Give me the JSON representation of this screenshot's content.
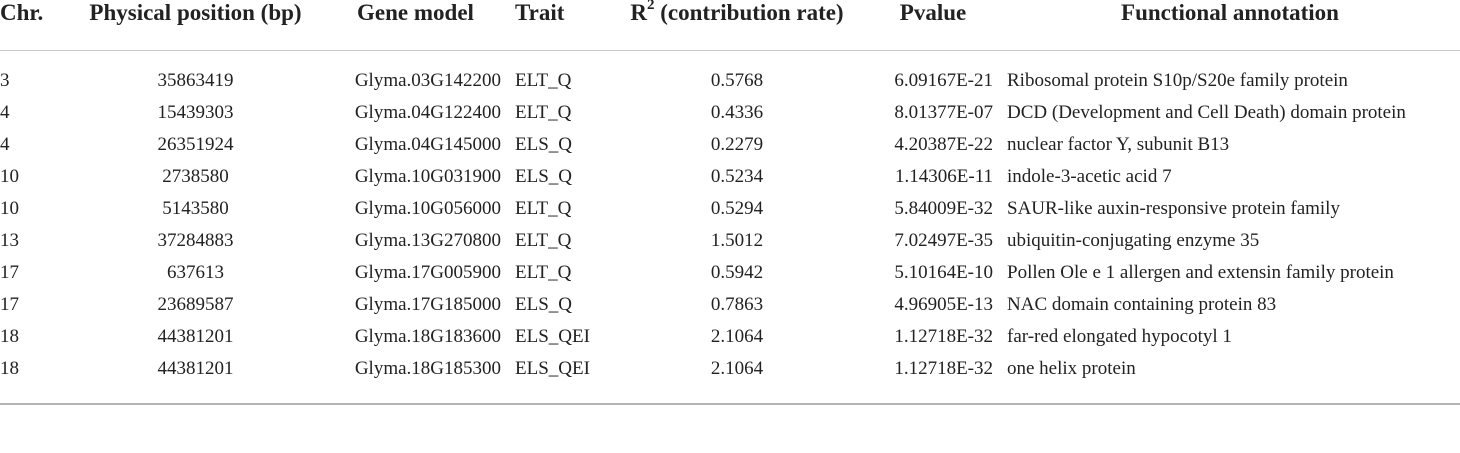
{
  "table": {
    "headers": {
      "chr": "Chr.",
      "position": "Physical position (bp)",
      "gene": "Gene model",
      "trait": "Trait",
      "r2_letter": "R",
      "r2_sup": "2",
      "r2_rest": " (contribution rate)",
      "pvalue": "Pvalue",
      "annotation": "Functional annotation"
    },
    "rows": [
      {
        "chr": "3",
        "position": "35863419",
        "gene": "Glyma.03G142200",
        "trait": "ELT_Q",
        "r2": "0.5768",
        "pvalue": "6.09167E-21",
        "annotation": "Ribosomal protein S10p/S20e family protein"
      },
      {
        "chr": "4",
        "position": "15439303",
        "gene": "Glyma.04G122400",
        "trait": "ELT_Q",
        "r2": "0.4336",
        "pvalue": "8.01377E-07",
        "annotation": "DCD (Development and Cell Death) domain protein"
      },
      {
        "chr": "4",
        "position": "26351924",
        "gene": "Glyma.04G145000",
        "trait": "ELS_Q",
        "r2": "0.2279",
        "pvalue": "4.20387E-22",
        "annotation": "nuclear factor Y, subunit B13"
      },
      {
        "chr": "10",
        "position": "2738580",
        "gene": "Glyma.10G031900",
        "trait": "ELS_Q",
        "r2": "0.5234",
        "pvalue": "1.14306E-11",
        "annotation": "indole-3-acetic acid 7"
      },
      {
        "chr": "10",
        "position": "5143580",
        "gene": "Glyma.10G056000",
        "trait": "ELT_Q",
        "r2": "0.5294",
        "pvalue": "5.84009E-32",
        "annotation": "SAUR-like auxin-responsive protein family"
      },
      {
        "chr": "13",
        "position": "37284883",
        "gene": "Glyma.13G270800",
        "trait": "ELT_Q",
        "r2": "1.5012",
        "pvalue": "7.02497E-35",
        "annotation": "ubiquitin-conjugating enzyme 35"
      },
      {
        "chr": "17",
        "position": "637613",
        "gene": "Glyma.17G005900",
        "trait": "ELT_Q",
        "r2": "0.5942",
        "pvalue": "5.10164E-10",
        "annotation": "Pollen Ole e 1 allergen and extensin family protein"
      },
      {
        "chr": "17",
        "position": "23689587",
        "gene": "Glyma.17G185000",
        "trait": "ELS_Q",
        "r2": "0.7863",
        "pvalue": "4.96905E-13",
        "annotation": "NAC domain containing protein 83"
      },
      {
        "chr": "18",
        "position": "44381201",
        "gene": "Glyma.18G183600",
        "trait": "ELS_QEI",
        "r2": "2.1064",
        "pvalue": "1.12718E-32",
        "annotation": "far-red elongated hypocotyl 1"
      },
      {
        "chr": "18",
        "position": "44381201",
        "gene": "Glyma.18G185300",
        "trait": "ELS_QEI",
        "r2": "2.1064",
        "pvalue": "1.12718E-32",
        "annotation": "one helix protein"
      }
    ]
  }
}
